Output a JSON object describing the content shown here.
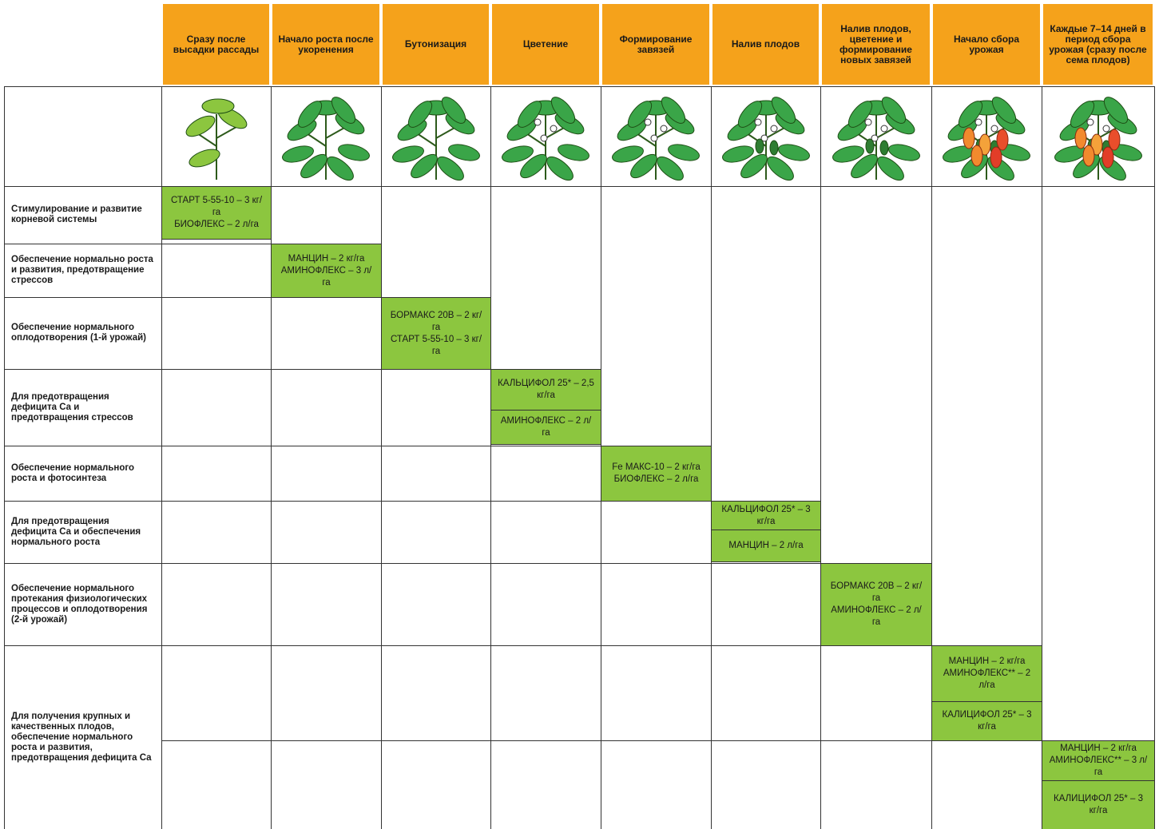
{
  "header": {
    "stages": [
      "Сразу после высадки рассады",
      "Начало роста после укоренения",
      "Бутонизация",
      "Цветение",
      "Формирование завязей",
      "Налив плодов",
      "Налив плодов, цветение и формирование новых завязей",
      "Начало сбора урожая",
      "Каждые 7–14 дней в период сбора урожая (сразу после сема плодов)"
    ]
  },
  "rows": [
    {
      "label": "Стимулирование и развитие корневой системы",
      "blocks": [
        [
          [
            "СТАРТ 5-55-10 – 3 кг/га",
            "БИОФЛЕКС – 2 л/га"
          ]
        ]
      ]
    },
    {
      "label": "Обеспечение нормально роста и развития, предотвращение стрессов",
      "blocks": [
        [
          [
            "МАНЦИН – 2 кг/га",
            "АМИНОФЛЕКС – 3 л/га"
          ]
        ]
      ]
    },
    {
      "label": "Обеспечение нормального оплодотворения (1-й урожай)",
      "blocks": [
        [
          [
            "БОРМАКС 20В – 2 кг/га",
            "СТАРТ 5-55-10 – 3 кг/га"
          ]
        ]
      ]
    },
    {
      "label": "Для предотвращения дефицита Са и предотвращения стрессов",
      "blocks": [
        [
          [
            "КАЛЬЦИФОЛ 25* – 2,5 кг/га"
          ],
          [
            "АМИНОФЛЕКС – 2 л/га"
          ]
        ]
      ]
    },
    {
      "label": "Обеспечение нормального роста и фотосинтеза",
      "blocks": [
        [
          [
            "Fe МАКС-10 – 2 кг/га",
            "БИОФЛЕКС – 2 л/га"
          ]
        ]
      ]
    },
    {
      "label": "Для предотвращения дефицита Са и обеспечения нормального роста",
      "blocks": [
        [
          [
            "КАЛЬЦИФОЛ 25* – 3 кг/га"
          ],
          [
            "МАНЦИН – 2 л/га"
          ]
        ]
      ]
    },
    {
      "label": "Обеспечение нормального протекания физиологических процессов и оплодотворения (2-й урожай)",
      "blocks": [
        [
          [
            "БОРМАКС 20В – 2 кг/га",
            "АМИНОФЛЕКС – 2 л/га"
          ]
        ]
      ]
    },
    {
      "label": "Для получения крупных и качественных плодов, обеспечение нормального роста и развития, предотвращения дефицита Са",
      "blocks": [
        [
          [
            "МАНЦИН – 2 кг/га",
            "АМИНОФЛЕКС** – 2 л/га"
          ],
          [
            "КАЛИЦИФОЛ 25* – 3 кг/га"
          ]
        ],
        [
          [
            "МАНЦИН – 2 кг/га",
            "АМИНОФЛЕКС** – 3 л/га"
          ],
          [
            "КАЛИЦИФОЛ 25* – 3 кг/га"
          ]
        ]
      ]
    }
  ]
}
